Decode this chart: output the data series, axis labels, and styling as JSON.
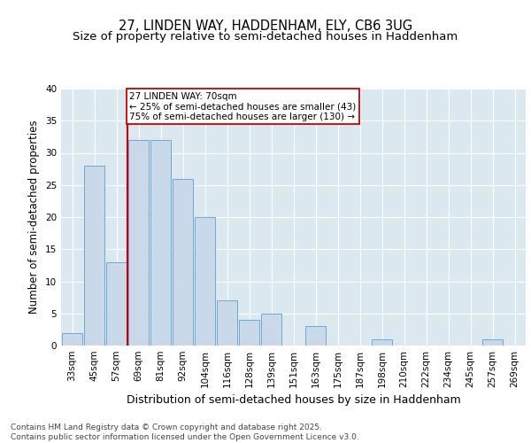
{
  "title": "27, LINDEN WAY, HADDENHAM, ELY, CB6 3UG",
  "subtitle": "Size of property relative to semi-detached houses in Haddenham",
  "xlabel": "Distribution of semi-detached houses by size in Haddenham",
  "ylabel": "Number of semi-detached properties",
  "bar_labels": [
    "33sqm",
    "45sqm",
    "57sqm",
    "69sqm",
    "81sqm",
    "92sqm",
    "104sqm",
    "116sqm",
    "128sqm",
    "139sqm",
    "151sqm",
    "163sqm",
    "175sqm",
    "187sqm",
    "198sqm",
    "210sqm",
    "222sqm",
    "234sqm",
    "245sqm",
    "257sqm",
    "269sqm"
  ],
  "bar_values": [
    2,
    28,
    13,
    32,
    32,
    26,
    20,
    7,
    4,
    5,
    0,
    3,
    0,
    0,
    1,
    0,
    0,
    0,
    0,
    1,
    0
  ],
  "bar_color": "#c9d9ea",
  "bar_edge_color": "#6aaad4",
  "highlight_bar_index": 3,
  "highlight_color": "#cc0000",
  "annotation_title": "27 LINDEN WAY: 70sqm",
  "annotation_line1": "← 25% of semi-detached houses are smaller (43)",
  "annotation_line2": "75% of semi-detached houses are larger (130) →",
  "annotation_box_color": "#cc0000",
  "ylim": [
    0,
    40
  ],
  "yticks": [
    0,
    5,
    10,
    15,
    20,
    25,
    30,
    35,
    40
  ],
  "fig_bg": "#ffffff",
  "plot_bg": "#dce8f0",
  "footer": "Contains HM Land Registry data © Crown copyright and database right 2025.\nContains public sector information licensed under the Open Government Licence v3.0.",
  "title_fontsize": 10.5,
  "subtitle_fontsize": 9.5,
  "xlabel_fontsize": 9,
  "ylabel_fontsize": 8.5,
  "tick_fontsize": 7.5,
  "annot_fontsize": 7.5,
  "footer_fontsize": 6.5
}
